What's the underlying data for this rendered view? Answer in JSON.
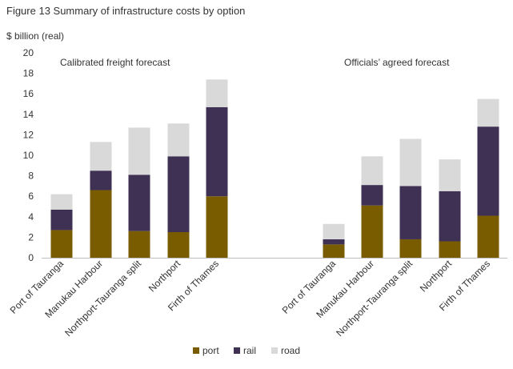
{
  "figure_title": "Figure 13 Summary of infrastructure costs by option",
  "chart_data": {
    "type": "bar",
    "stacked": true,
    "ylabel": "$ billion (real)",
    "ylim": [
      0,
      20
    ],
    "yticks": [
      0,
      2,
      4,
      6,
      8,
      10,
      12,
      14,
      16,
      18,
      20
    ],
    "grid": false,
    "legend_placement": "bottom",
    "colors": {
      "port": "#7a5c00",
      "rail": "#3f3153",
      "road": "#d9d9d9"
    },
    "series_names": [
      "port",
      "rail",
      "road"
    ],
    "groups": [
      {
        "label": "Calibrated freight forecast",
        "categories": [
          "Port of Tauranga",
          "Manukau Harbour",
          "Northport-Tauranga split",
          "Northport",
          "Firth of Thames"
        ],
        "series": [
          {
            "name": "port",
            "values": [
              2.7,
              6.6,
              2.6,
              2.5,
              6.0
            ]
          },
          {
            "name": "rail",
            "values": [
              2.0,
              1.9,
              5.5,
              7.4,
              8.7
            ]
          },
          {
            "name": "road",
            "values": [
              1.5,
              2.8,
              4.6,
              3.2,
              2.7
            ]
          }
        ]
      },
      {
        "label": "Officials’ agreed forecast",
        "categories": [
          "Port of Tauranga",
          "Manukau Harbour",
          "Northport-Tauranga split",
          "Northport",
          "Firth of Thames"
        ],
        "series": [
          {
            "name": "port",
            "values": [
              1.3,
              5.1,
              1.8,
              1.6,
              4.1
            ]
          },
          {
            "name": "rail",
            "values": [
              0.5,
              2.0,
              5.2,
              4.9,
              8.7
            ]
          },
          {
            "name": "road",
            "values": [
              1.5,
              2.8,
              4.6,
              3.1,
              2.7
            ]
          }
        ]
      }
    ]
  }
}
